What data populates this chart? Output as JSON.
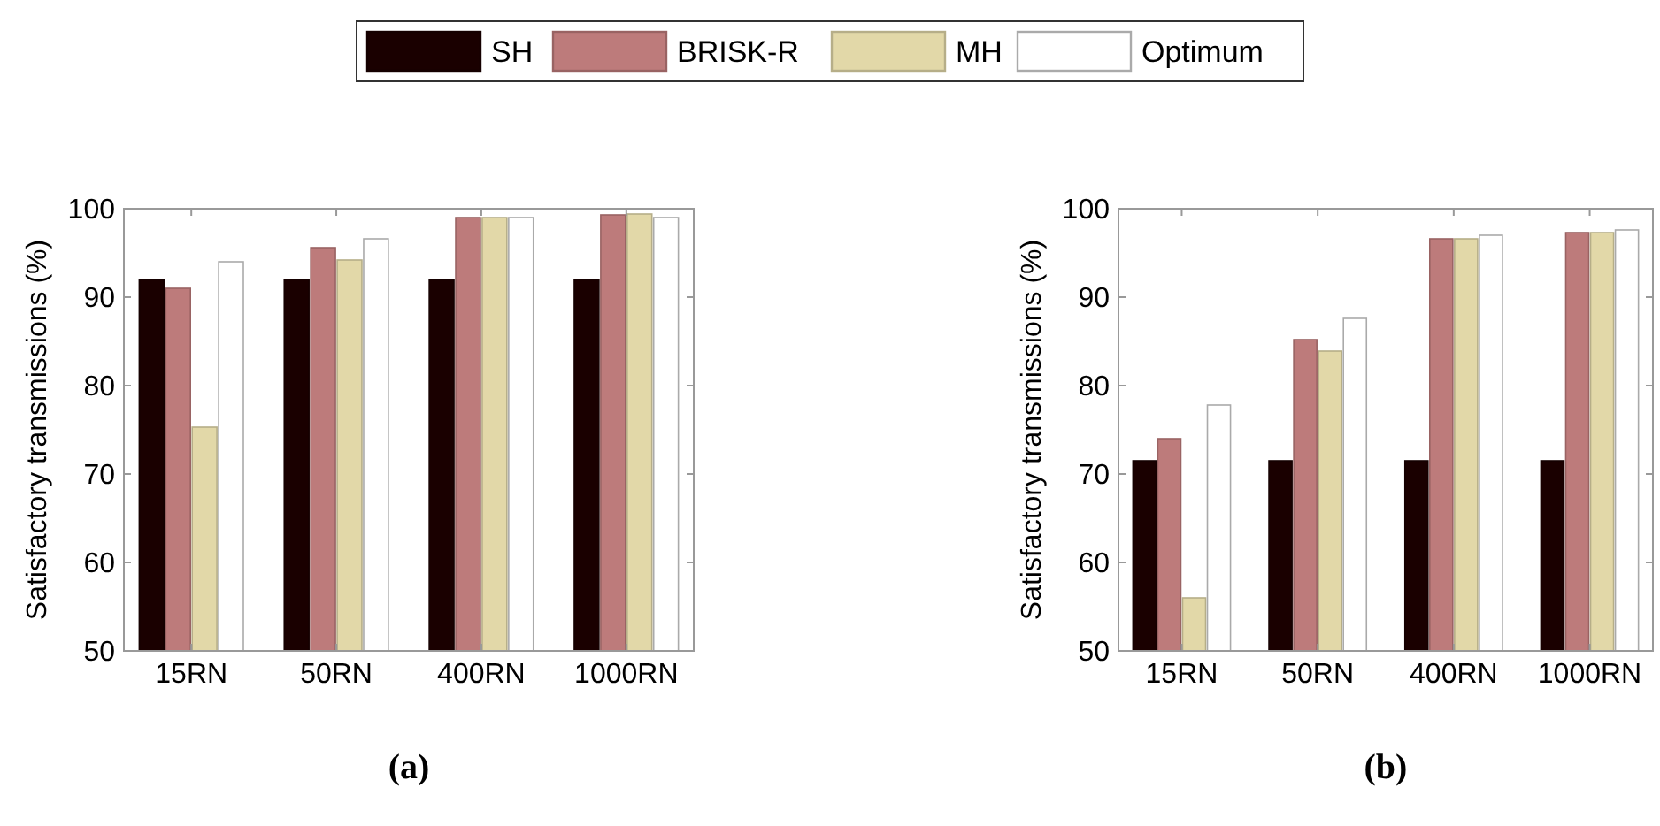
{
  "chart_data": [
    {
      "type": "bar",
      "xlabel": "(a)",
      "ylabel": "Satisfactory transmissions (%)",
      "categories": [
        "15RN",
        "50RN",
        "400RN",
        "1000RN"
      ],
      "ylim": [
        50,
        100
      ],
      "yticks": [
        50,
        60,
        70,
        80,
        90,
        100
      ],
      "legend": "top",
      "grid": false,
      "series": [
        {
          "name": "SH",
          "color": "#1a0000",
          "values": [
            92,
            92,
            92,
            92
          ]
        },
        {
          "name": "BRISK-R",
          "color": "#bd7b7b",
          "values": [
            91,
            95.6,
            99,
            99.3
          ]
        },
        {
          "name": "MH",
          "color": "#e2d8a8",
          "values": [
            75.3,
            94.2,
            99,
            99.4
          ]
        },
        {
          "name": "Optimum",
          "color": "#ffffff",
          "values": [
            94,
            96.6,
            99,
            99
          ]
        }
      ]
    },
    {
      "type": "bar",
      "xlabel": "(b)",
      "ylabel": "Satisfactory transmissions (%)",
      "categories": [
        "15RN",
        "50RN",
        "400RN",
        "1000RN"
      ],
      "ylim": [
        50,
        100
      ],
      "yticks": [
        50,
        60,
        70,
        80,
        90,
        100
      ],
      "grid": false,
      "series": [
        {
          "color": "#1a0000",
          "values": [
            71.5,
            71.5,
            71.5,
            71.5
          ]
        },
        {
          "color": "#bd7b7b",
          "values": [
            74,
            85.2,
            96.6,
            97.3
          ]
        },
        {
          "color": "#e2d8a8",
          "values": [
            56,
            83.9,
            96.6,
            97.3
          ]
        },
        {
          "color": "#ffffff",
          "values": [
            77.8,
            87.6,
            97,
            97.6
          ]
        }
      ]
    }
  ]
}
